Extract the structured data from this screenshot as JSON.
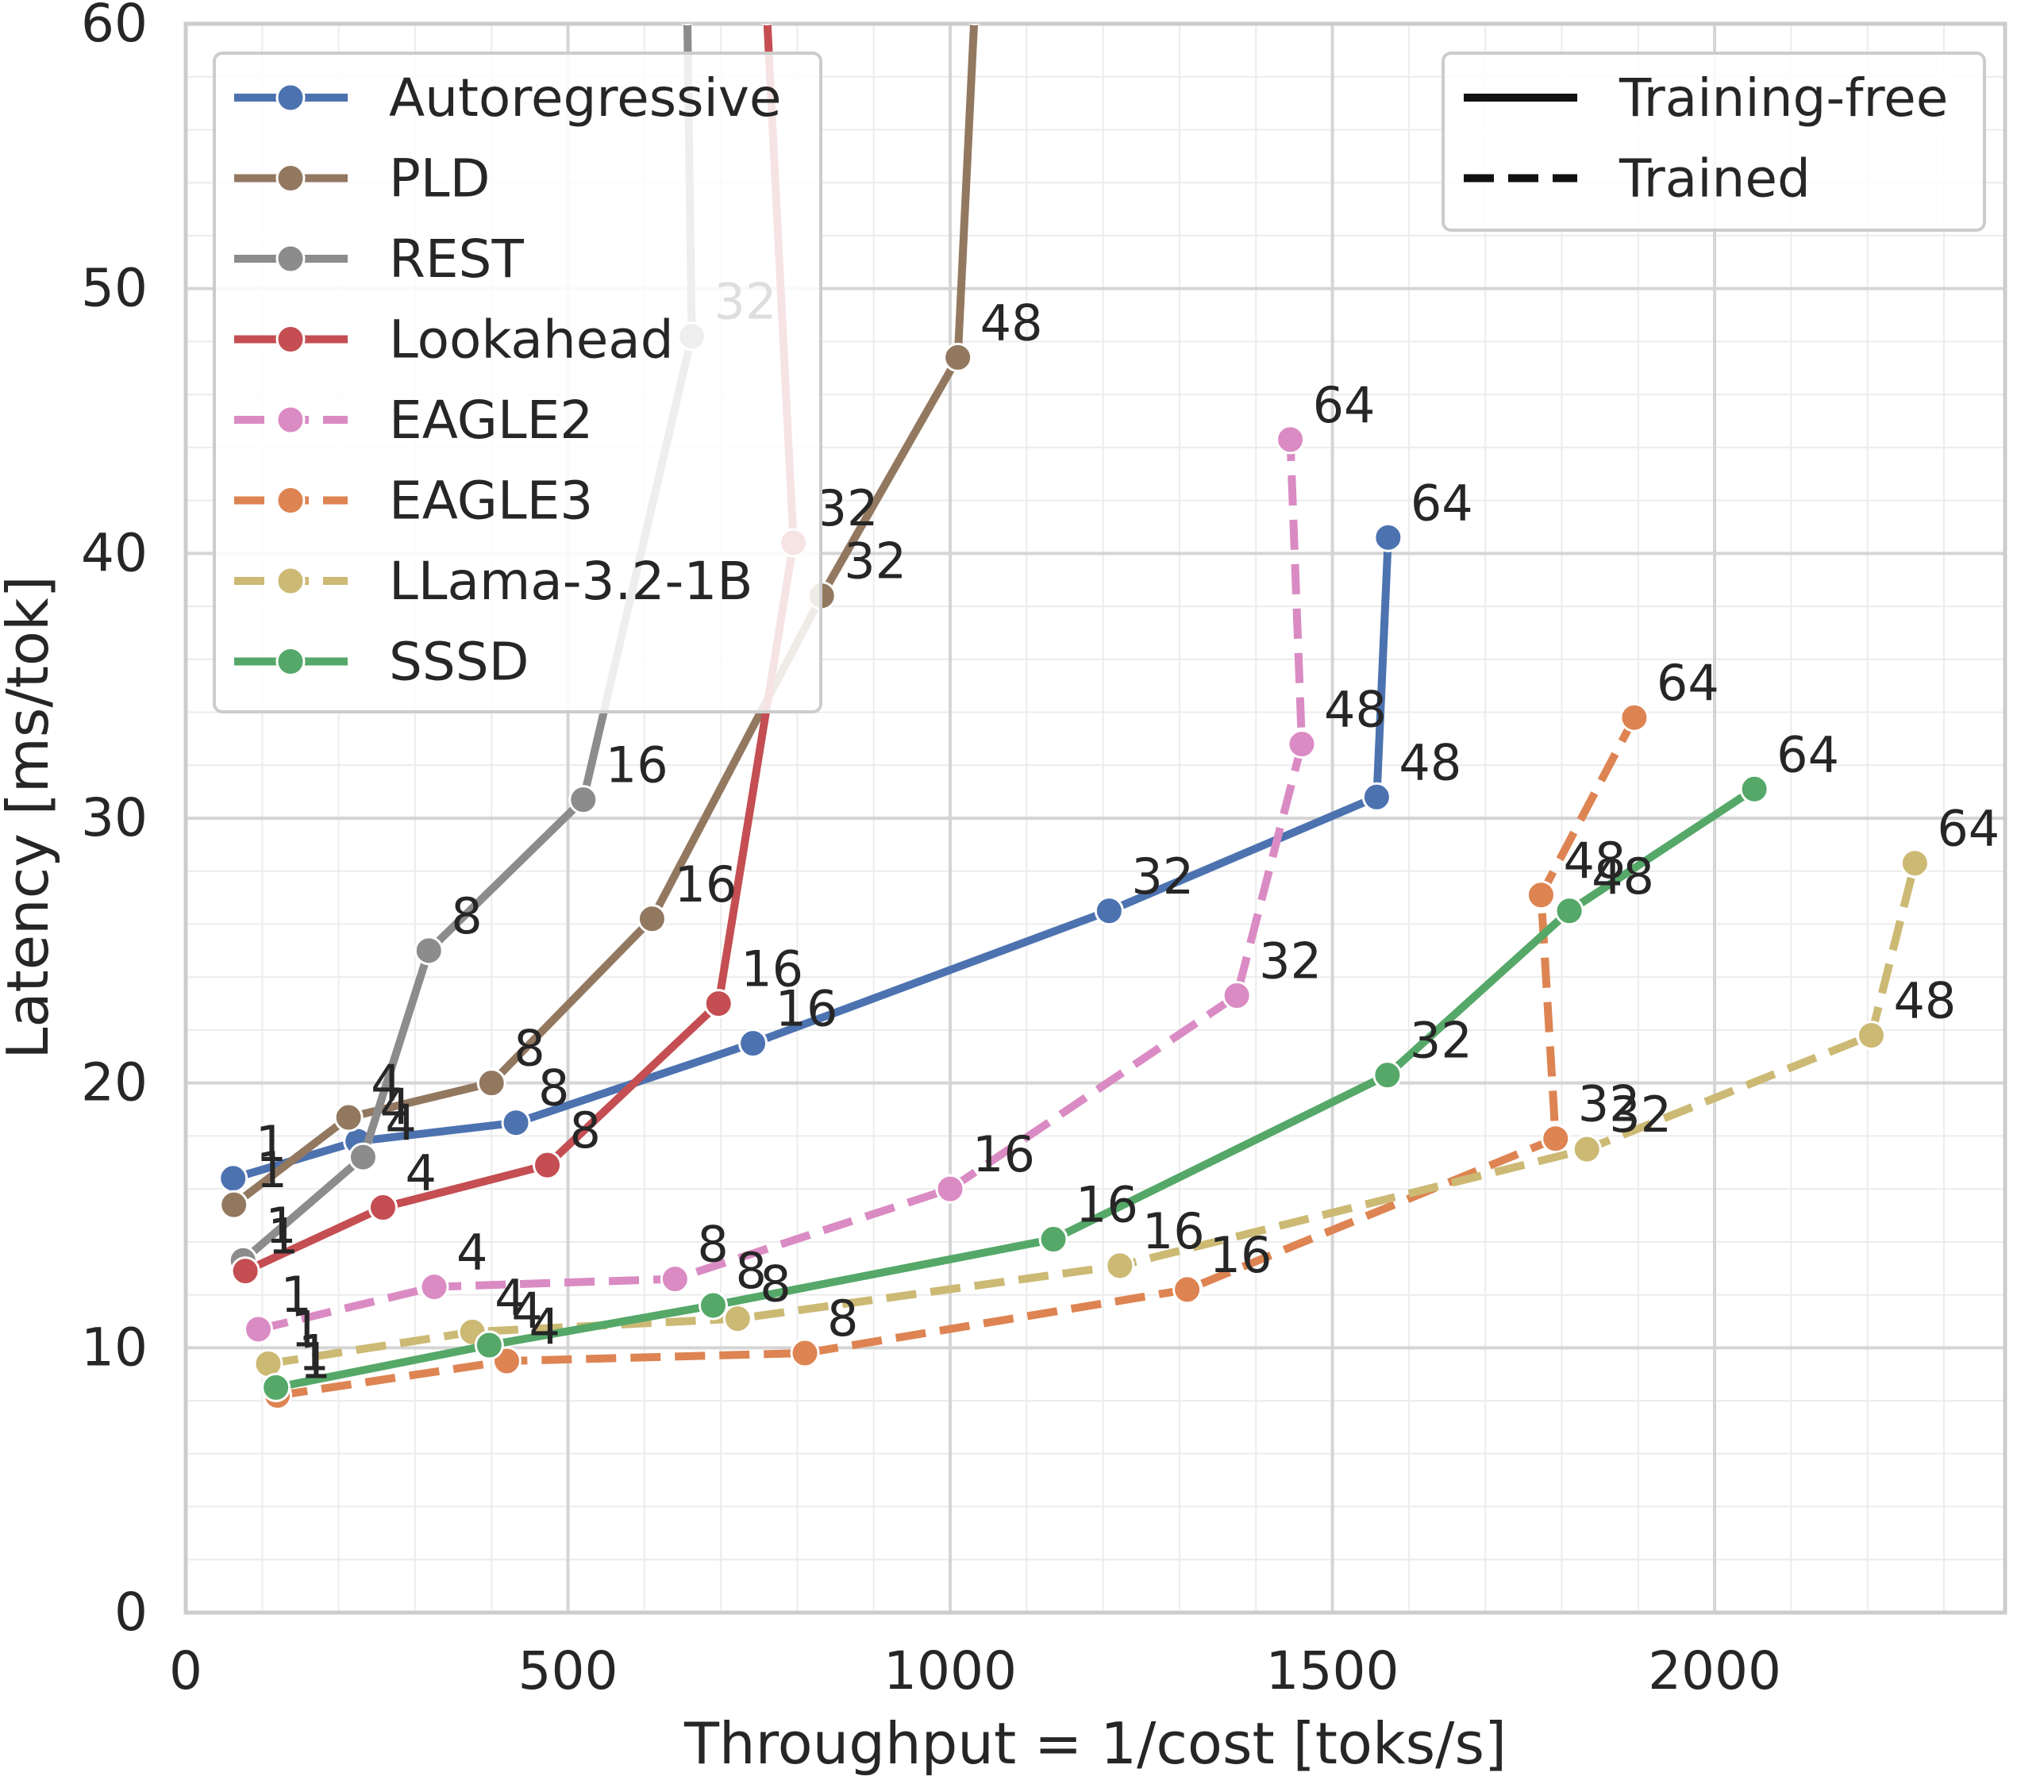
{
  "chart_data": {
    "type": "line",
    "title": "",
    "xlabel": "Throughput = 1/cost [toks/s]",
    "ylabel": "Latency [ms/tok]",
    "xlim": [
      0,
      2380
    ],
    "ylim": [
      0,
      60
    ],
    "x_ticks": [
      0,
      500,
      1000,
      1500,
      2000
    ],
    "x_tick_labels": [
      "0",
      "500",
      "1000",
      "1500",
      "2000"
    ],
    "y_ticks": [
      0,
      10,
      20,
      30,
      40,
      50,
      60
    ],
    "y_tick_labels": [
      "0",
      "10",
      "20",
      "30",
      "40",
      "50",
      "60"
    ],
    "grid": true,
    "series": [
      {
        "name": "Autoregressive",
        "color": "#4c72b0",
        "style": "solid",
        "points": [
          [
            62,
            16.4
          ],
          [
            225,
            17.8
          ],
          [
            432,
            18.5
          ],
          [
            742,
            21.5
          ],
          [
            1208,
            26.5
          ],
          [
            1558,
            30.8
          ],
          [
            1573,
            40.6
          ]
        ],
        "labels": [
          "1",
          "4",
          "8",
          "16",
          "32",
          "48",
          "64"
        ]
      },
      {
        "name": "PLD",
        "color": "#937860",
        "style": "solid",
        "points": [
          [
            63,
            15.4
          ],
          [
            213,
            18.7
          ],
          [
            400,
            20.0
          ],
          [
            610,
            26.2
          ],
          [
            832,
            38.4
          ],
          [
            1010,
            47.4
          ],
          [
            1032,
            60.5
          ]
        ],
        "labels": [
          "1",
          "4",
          "8",
          "16",
          "32",
          "48",
          ""
        ]
      },
      {
        "name": "REST",
        "color": "#8c8c8c",
        "style": "solid",
        "points": [
          [
            75,
            13.3
          ],
          [
            232,
            17.2
          ],
          [
            318,
            25.0
          ],
          [
            520,
            30.7
          ],
          [
            662,
            48.2
          ],
          [
            656,
            60.5
          ]
        ],
        "labels": [
          "1",
          "4",
          "8",
          "16",
          "32",
          ""
        ]
      },
      {
        "name": "Lookahead",
        "color": "#c44e52",
        "style": "solid",
        "points": [
          [
            78,
            12.9
          ],
          [
            258,
            15.3
          ],
          [
            473,
            16.9
          ],
          [
            697,
            23.0
          ],
          [
            795,
            40.4
          ],
          [
            760,
            60.5
          ]
        ],
        "labels": [
          "1",
          "4",
          "8",
          "16",
          "32",
          ""
        ]
      },
      {
        "name": "EAGLE2",
        "color": "#da8bc3",
        "style": "dashed",
        "points": [
          [
            95,
            10.7
          ],
          [
            325,
            12.3
          ],
          [
            640,
            12.6
          ],
          [
            1000,
            16.0
          ],
          [
            1375,
            23.3
          ],
          [
            1460,
            32.8
          ],
          [
            1445,
            44.3
          ]
        ],
        "labels": [
          "1",
          "4",
          "8",
          "16",
          "32",
          "48",
          "64"
        ]
      },
      {
        "name": "EAGLE3",
        "color": "#dd8452",
        "style": "dashed",
        "points": [
          [
            120,
            8.2
          ],
          [
            420,
            9.5
          ],
          [
            810,
            9.8
          ],
          [
            1310,
            12.2
          ],
          [
            1792,
            17.9
          ],
          [
            1773,
            27.1
          ],
          [
            1895,
            33.8
          ]
        ],
        "labels": [
          "1",
          "4",
          "8",
          "16",
          "32",
          "48",
          "64"
        ]
      },
      {
        "name": "LLama-3.2-1B",
        "color": "#ccb974",
        "style": "dashed",
        "points": [
          [
            108,
            9.4
          ],
          [
            375,
            10.6
          ],
          [
            722,
            11.1
          ],
          [
            1222,
            13.1
          ],
          [
            1833,
            17.5
          ],
          [
            2205,
            21.8
          ],
          [
            2262,
            28.3
          ]
        ],
        "labels": [
          "1",
          "4",
          "8",
          "16",
          "32",
          "48",
          "64"
        ]
      },
      {
        "name": "SSSD",
        "color": "#55a868",
        "style": "solid",
        "points": [
          [
            118,
            8.5
          ],
          [
            397,
            10.1
          ],
          [
            690,
            11.6
          ],
          [
            1135,
            14.1
          ],
          [
            1572,
            20.3
          ],
          [
            1810,
            26.5
          ],
          [
            2052,
            31.1
          ]
        ],
        "labels": [
          "1",
          "4",
          "8",
          "16",
          "32",
          "48",
          "64"
        ]
      }
    ],
    "style_legend": [
      {
        "label": "Training-free",
        "style": "solid"
      },
      {
        "label": "Trained",
        "style": "dashed"
      }
    ],
    "legend_position": "top-left",
    "style_legend_position": "top-right"
  }
}
